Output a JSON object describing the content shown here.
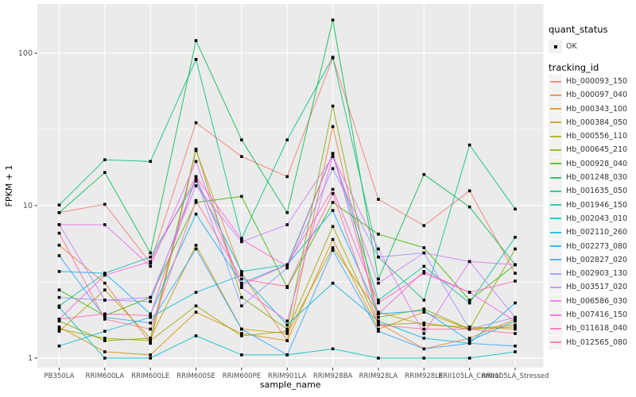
{
  "figure": {
    "y_axis": {
      "label": "FPKM + 1",
      "tick_labels": [
        "100",
        "10",
        "1"
      ]
    },
    "x_axis": {
      "label": "sample_name"
    },
    "legend": {
      "quant_title": "quant_status",
      "quant_items": [
        {
          "label": "OK",
          "marker": "black-point"
        }
      ],
      "tracking_title": "tracking_id"
    }
  },
  "colors": {
    "panel_bg": "#EBEBEB",
    "grid": "#FFFFFF",
    "tick_text": "#4D4D4D",
    "axis_title": "#000000",
    "point": "#000000",
    "legend_key_bg": "#F2F2F2"
  },
  "chart_data": {
    "type": "line",
    "title": "",
    "xlabel": "sample_name",
    "ylabel": "FPKM + 1",
    "y_scale": "log10",
    "y_ticks": [
      1,
      10,
      100
    ],
    "ylim": [
      1,
      210
    ],
    "grid": true,
    "legend_position": "right",
    "point_marker": "black-square",
    "quant_status": "OK",
    "categories": [
      "PB350LA",
      "RRIM600LA",
      "RRIM600LE",
      "RRIM600SE",
      "RRIM600PE",
      "RRIM901LA",
      "RRIM928BA",
      "RRIM928LA",
      "RRIM928LE",
      "RRII105LA_Control",
      "RRII105LA_Stressed"
    ],
    "series": [
      {
        "name": "Hb_000093_150",
        "color": "#F8766D",
        "values": [
          9.0,
          10.2,
          4.2,
          35,
          21,
          15.5,
          93,
          11,
          7.4,
          12.5,
          3.6
        ]
      },
      {
        "name": "Hb_000097_040",
        "color": "#EA8331",
        "values": [
          5.5,
          3.1,
          1.25,
          23,
          3.6,
          1.3,
          33,
          1.7,
          1.15,
          1.35,
          1.8
        ]
      },
      {
        "name": "Hb_000343_100",
        "color": "#D89000",
        "values": [
          1.6,
          1.1,
          1.05,
          2.0,
          1.45,
          1.3,
          6.0,
          1.55,
          2.0,
          1.55,
          1.65
        ]
      },
      {
        "name": "Hb_000384_050",
        "color": "#C09B00",
        "values": [
          1.5,
          2.8,
          1.35,
          5.5,
          1.55,
          1.45,
          5.3,
          2.0,
          1.65,
          1.6,
          1.55
        ]
      },
      {
        "name": "Hb_000556_110",
        "color": "#A3A500",
        "values": [
          1.55,
          1.35,
          1.3,
          2.2,
          1.4,
          1.5,
          7.3,
          1.65,
          1.7,
          1.55,
          1.6
        ]
      },
      {
        "name": "Hb_000645_210",
        "color": "#7CAE00",
        "values": [
          1.75,
          1.3,
          1.35,
          23.5,
          2.5,
          1.55,
          45,
          1.85,
          2.1,
          1.55,
          5.2
        ]
      },
      {
        "name": "Hb_000928_040",
        "color": "#39B600",
        "values": [
          2.8,
          1.9,
          2.5,
          10.5,
          11.5,
          2.9,
          10.5,
          6.5,
          5.3,
          2.4,
          4.1
        ]
      },
      {
        "name": "Hb_001248_030",
        "color": "#00BB4E",
        "values": [
          9.0,
          16.5,
          4.9,
          121,
          27,
          9.0,
          165,
          3.3,
          16.0,
          9.8,
          4.1
        ]
      },
      {
        "name": "Hb_001635_050",
        "color": "#00BF7D",
        "values": [
          10.1,
          20,
          19.5,
          91,
          6.1,
          27,
          94,
          4.6,
          2.4,
          25,
          9.5
        ]
      },
      {
        "name": "Hb_001946_150",
        "color": "#00C1A3",
        "values": [
          2.2,
          3.6,
          4.6,
          14.5,
          3.7,
          4.1,
          22,
          2.4,
          4.0,
          2.3,
          6.2
        ]
      },
      {
        "name": "Hb_002043_010",
        "color": "#00BFC4",
        "values": [
          2.15,
          1.0,
          1.0,
          1.4,
          1.05,
          1.05,
          1.15,
          1.0,
          1.0,
          1.0,
          1.1
        ]
      },
      {
        "name": "Hb_002110_260",
        "color": "#00BAE0",
        "values": [
          1.2,
          1.5,
          1.85,
          2.7,
          3.5,
          1.65,
          3.1,
          1.75,
          1.35,
          1.25,
          2.3
        ]
      },
      {
        "name": "Hb_002273_080",
        "color": "#00B0F6",
        "values": [
          3.7,
          3.6,
          1.95,
          8.8,
          3.1,
          4.1,
          9.3,
          1.95,
          2.05,
          1.3,
          1.75
        ]
      },
      {
        "name": "Hb_002827_020",
        "color": "#35A2FF",
        "values": [
          4.7,
          1.85,
          1.7,
          5.2,
          1.55,
          1.05,
          5.1,
          1.5,
          1.15,
          1.25,
          1.2
        ]
      },
      {
        "name": "Hb_002903_130",
        "color": "#9590FF",
        "values": [
          2.5,
          2.4,
          2.35,
          15,
          2.2,
          3.9,
          17.5,
          4.6,
          4.9,
          1.55,
          1.85
        ]
      },
      {
        "name": "Hb_003517_020",
        "color": "#C77CFF",
        "values": [
          7.5,
          2.4,
          2.5,
          13.5,
          5.8,
          7.5,
          21,
          3.1,
          4.9,
          4.3,
          1.85
        ]
      },
      {
        "name": "Hb_006586_030",
        "color": "#E76BF3",
        "values": [
          7.5,
          7.5,
          4.0,
          19.5,
          2.9,
          1.75,
          21,
          5.2,
          1.45,
          4.3,
          4.1
        ]
      },
      {
        "name": "Hb_007416_150",
        "color": "#FA62DB",
        "values": [
          1.8,
          3.5,
          4.3,
          15.5,
          6.0,
          4.0,
          22,
          1.95,
          3.7,
          2.7,
          1.75
        ]
      },
      {
        "name": "Hb_011618_040",
        "color": "#FF62BC",
        "values": [
          1.8,
          1.95,
          1.9,
          15.5,
          3.0,
          4.1,
          12.8,
          2.3,
          3.6,
          2.7,
          3.2
        ]
      },
      {
        "name": "Hb_012565_080",
        "color": "#FF6A98",
        "values": [
          6.6,
          1.8,
          1.55,
          10.8,
          3.3,
          2.95,
          12.0,
          1.65,
          1.55,
          1.55,
          1.45
        ]
      }
    ]
  }
}
